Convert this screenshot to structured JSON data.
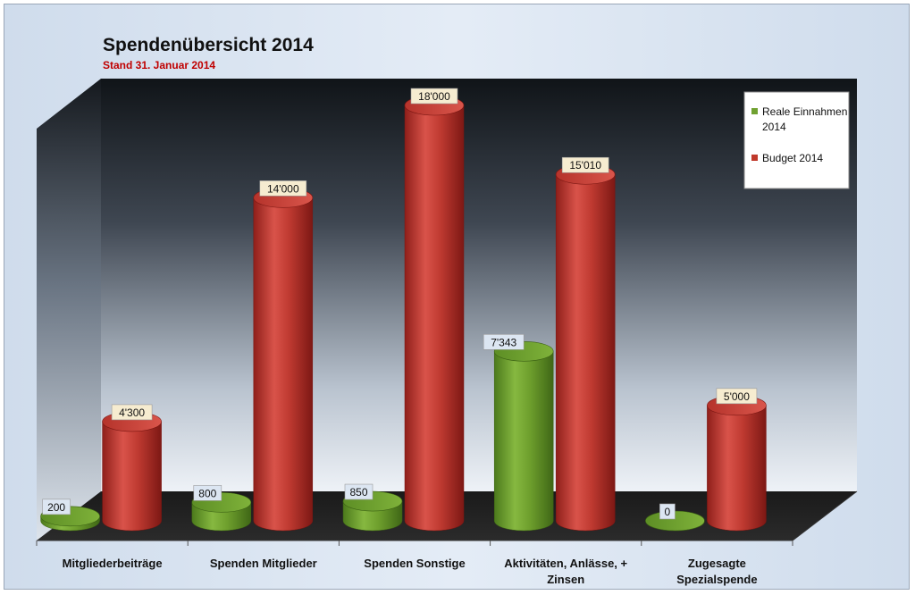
{
  "chart_data": {
    "type": "bar",
    "title": "Spendenübersicht 2014",
    "subtitle": "Stand 31. Januar 2014",
    "categories": [
      [
        "Mitgliederbeiträge"
      ],
      [
        "Spenden Mitglieder"
      ],
      [
        "Spenden Sonstige"
      ],
      [
        "Aktivitäten, Anlässe, +",
        "Zinsen"
      ],
      [
        "Zugesagte",
        "Spezialspende"
      ]
    ],
    "series": [
      {
        "name": "Reale Einnahmen 2014",
        "legend_lines": [
          "Reale Einnahmen",
          "2014"
        ],
        "color": "#70a131",
        "label_bg": "#dce6f2",
        "values": [
          200,
          800,
          850,
          7343,
          0
        ],
        "labels": [
          "200",
          "800",
          "850",
          "7'343",
          "0"
        ]
      },
      {
        "name": "Budget 2014",
        "legend_lines": [
          "Budget 2014"
        ],
        "color": "#c0392b",
        "label_bg": "#f6ecd0",
        "values": [
          4300,
          14000,
          18000,
          15010,
          5000
        ],
        "labels": [
          "4'300",
          "14'000",
          "18'000",
          "15'010",
          "5'000"
        ]
      }
    ],
    "ylim": [
      0,
      18000
    ],
    "legend_position": "top-right",
    "grid": false,
    "style": "3d-cylinder"
  }
}
